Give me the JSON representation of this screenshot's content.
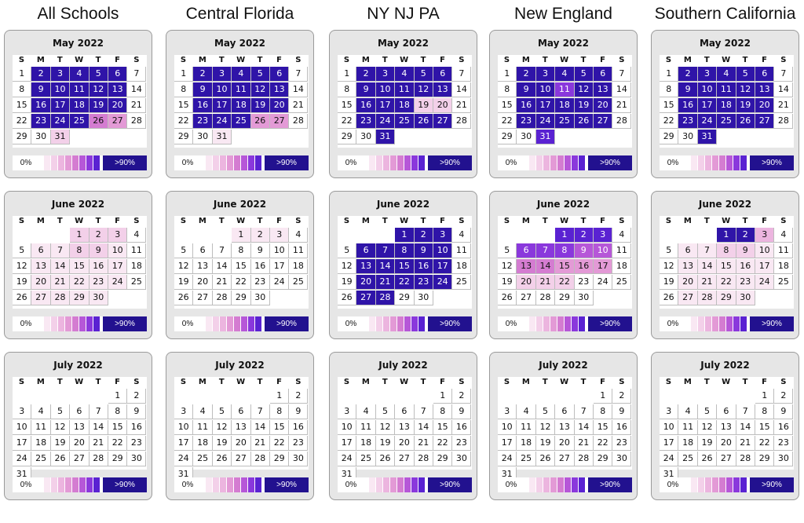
{
  "columns": [
    {
      "title": "All Schools"
    },
    {
      "title": "Central Florida"
    },
    {
      "title": "NY NJ PA"
    },
    {
      "title": "New England"
    },
    {
      "title": "Southern California"
    }
  ],
  "weekdays": [
    "S",
    "M",
    "T",
    "W",
    "T",
    "F",
    "S"
  ],
  "legend": {
    "min_label": "0%",
    "max_label": ">90%",
    "scale_colors": [
      "#ffffff",
      "#f9e8f3",
      "#f3d0e9",
      "#ecb5df",
      "#e39ad6",
      "#d47cd1",
      "#b657d8",
      "#8a38dc",
      "#5a22d2",
      "#2f14a8"
    ]
  },
  "color_scale_note_levels": [
    "0%",
    "10%",
    "20%",
    "30%",
    "40%",
    "50%",
    "60%",
    "70%",
    "80%",
    ">90%"
  ],
  "chart_data": {
    "type": "heatmap",
    "value_unit": "percent",
    "value_range": [
      0,
      100
    ],
    "legend_labels": [
      "0%",
      ">90%"
    ],
    "months": [
      {
        "title": "May 2022",
        "start_weekday": 0,
        "days_in_month": 31
      },
      {
        "title": "June 2022",
        "start_weekday": 3,
        "days_in_month": 30
      },
      {
        "title": "July 2022",
        "start_weekday": 5,
        "days_in_month": 31
      }
    ],
    "regions": [
      {
        "name": "All Schools",
        "months": {
          "May 2022": [
            0,
            95,
            95,
            95,
            95,
            95,
            0,
            0,
            95,
            95,
            95,
            95,
            95,
            0,
            0,
            95,
            95,
            95,
            95,
            95,
            0,
            0,
            95,
            95,
            95,
            45,
            40,
            0,
            0,
            0,
            15
          ],
          "June 2022": [
            15,
            15,
            20,
            0,
            0,
            10,
            10,
            15,
            15,
            10,
            0,
            0,
            5,
            5,
            5,
            5,
            5,
            0,
            0,
            5,
            5,
            5,
            5,
            5,
            0,
            0,
            5,
            5,
            5,
            5
          ],
          "July 2022": [
            0,
            0,
            0,
            0,
            0,
            0,
            0,
            0,
            0,
            0,
            0,
            0,
            0,
            0,
            0,
            0,
            0,
            0,
            0,
            0,
            0,
            0,
            0,
            0,
            0,
            0,
            0,
            0,
            0,
            0,
            0
          ]
        }
      },
      {
        "name": "Central Florida",
        "months": {
          "May 2022": [
            0,
            95,
            95,
            95,
            95,
            95,
            0,
            0,
            95,
            95,
            95,
            95,
            95,
            0,
            0,
            95,
            95,
            95,
            95,
            95,
            0,
            0,
            95,
            95,
            95,
            35,
            35,
            0,
            0,
            0,
            10
          ],
          "June 2022": [
            10,
            10,
            10,
            0,
            0,
            0,
            0,
            0,
            0,
            0,
            0,
            0,
            0,
            0,
            0,
            0,
            0,
            0,
            0,
            0,
            0,
            0,
            0,
            0,
            0,
            0,
            0,
            0,
            0,
            0
          ],
          "July 2022": [
            0,
            0,
            0,
            0,
            0,
            0,
            0,
            0,
            0,
            0,
            0,
            0,
            0,
            0,
            0,
            0,
            0,
            0,
            0,
            0,
            0,
            0,
            0,
            0,
            0,
            0,
            0,
            0,
            0,
            0,
            0
          ]
        }
      },
      {
        "name": "NY NJ PA",
        "months": {
          "May 2022": [
            0,
            95,
            85,
            95,
            95,
            95,
            0,
            0,
            95,
            95,
            95,
            95,
            95,
            0,
            0,
            95,
            85,
            95,
            15,
            15,
            0,
            0,
            95,
            95,
            95,
            95,
            95,
            0,
            0,
            0,
            95
          ],
          "June 2022": [
            95,
            95,
            95,
            0,
            0,
            95,
            95,
            95,
            95,
            95,
            0,
            0,
            95,
            95,
            90,
            90,
            90,
            0,
            0,
            90,
            90,
            90,
            90,
            90,
            0,
            0,
            90,
            90,
            0,
            0
          ],
          "July 2022": [
            0,
            0,
            0,
            0,
            0,
            0,
            0,
            0,
            0,
            0,
            0,
            0,
            0,
            0,
            0,
            0,
            0,
            0,
            0,
            0,
            0,
            0,
            0,
            0,
            0,
            0,
            0,
            0,
            0,
            0,
            0
          ]
        }
      },
      {
        "name": "New England",
        "months": {
          "May 2022": [
            0,
            95,
            95,
            95,
            95,
            95,
            0,
            0,
            95,
            95,
            70,
            95,
            95,
            0,
            0,
            95,
            95,
            95,
            95,
            95,
            0,
            0,
            95,
            95,
            95,
            95,
            95,
            0,
            0,
            0,
            75
          ],
          "June 2022": [
            75,
            75,
            75,
            0,
            0,
            70,
            70,
            70,
            60,
            60,
            0,
            0,
            45,
            45,
            35,
            35,
            35,
            0,
            0,
            20,
            20,
            20,
            0,
            0,
            0,
            0,
            0,
            0,
            0,
            0
          ],
          "July 2022": [
            0,
            0,
            0,
            0,
            0,
            0,
            0,
            0,
            0,
            0,
            0,
            0,
            0,
            0,
            0,
            0,
            0,
            0,
            0,
            0,
            0,
            0,
            0,
            0,
            0,
            0,
            0,
            0,
            0,
            0,
            0
          ]
        }
      },
      {
        "name": "Southern California",
        "months": {
          "May 2022": [
            0,
            95,
            95,
            95,
            95,
            95,
            0,
            0,
            95,
            95,
            95,
            95,
            95,
            0,
            0,
            95,
            95,
            95,
            95,
            95,
            0,
            0,
            95,
            95,
            95,
            95,
            95,
            0,
            0,
            0,
            95
          ],
          "June 2022": [
            95,
            95,
            25,
            0,
            0,
            10,
            10,
            15,
            15,
            10,
            0,
            0,
            5,
            5,
            5,
            5,
            5,
            0,
            0,
            5,
            5,
            5,
            5,
            5,
            0,
            0,
            5,
            5,
            5,
            5
          ],
          "July 2022": [
            0,
            0,
            0,
            0,
            0,
            0,
            0,
            0,
            0,
            0,
            0,
            0,
            0,
            0,
            0,
            0,
            0,
            0,
            0,
            0,
            0,
            0,
            0,
            0,
            0,
            0,
            0,
            0,
            0,
            0,
            0
          ]
        }
      }
    ]
  }
}
